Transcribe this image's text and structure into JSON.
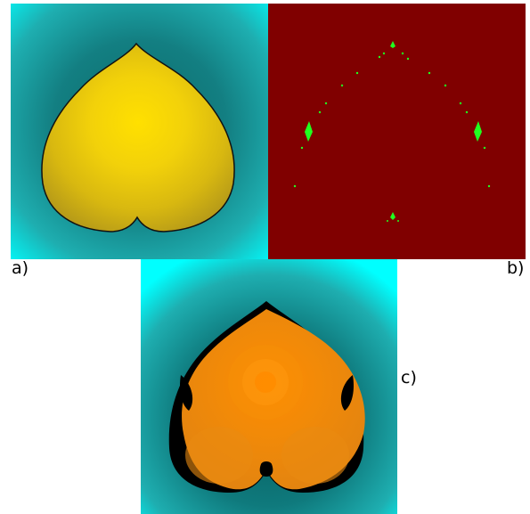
{
  "panels": [
    {
      "id": "a",
      "label": "a)"
    },
    {
      "id": "b",
      "label": "b)"
    },
    {
      "id": "c",
      "label": "c)"
    }
  ],
  "colors": {
    "background_cyan": "#00ffff",
    "background_teal": "#0a7a7a",
    "heart_yellow": "#ffe400",
    "heart_yellow_dark": "#c9a90c",
    "dark_red": "#800000",
    "green_points": "#20ff20",
    "heart_orange": "#ff8c00",
    "heart_orange_dark": "#e0820a",
    "outline": "#000000"
  }
}
